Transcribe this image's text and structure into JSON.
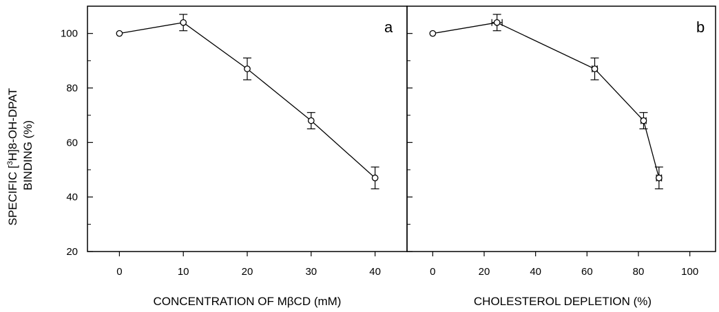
{
  "chart_data": [
    {
      "type": "line",
      "panel_label": "a",
      "xlabel": "CONCENTRATION OF MβCD (mM)",
      "ylabel_line1": "SPECIFIC [3H]8-OH-DPAT",
      "ylabel_line2": "BINDING (%)",
      "xlim": [
        -5,
        45
      ],
      "ylim": [
        20,
        110
      ],
      "x_ticks": [
        0,
        10,
        20,
        30,
        40
      ],
      "y_ticks": [
        20,
        40,
        60,
        80,
        100
      ],
      "x": [
        0,
        10,
        20,
        30,
        40
      ],
      "y": [
        100,
        104,
        87,
        68,
        47
      ],
      "y_err": [
        0,
        3,
        4,
        3,
        4
      ],
      "x_err": [
        0,
        0,
        0,
        0,
        0
      ],
      "marker": "open-circle",
      "grid": false
    },
    {
      "type": "line",
      "panel_label": "b",
      "xlabel": "CHOLESTEROL DEPLETION (%)",
      "xlim": [
        -10,
        110
      ],
      "ylim": [
        20,
        110
      ],
      "x_ticks": [
        0,
        20,
        40,
        60,
        80,
        100
      ],
      "y_ticks": [
        20,
        40,
        60,
        80,
        100
      ],
      "x": [
        0,
        25,
        63,
        82,
        88
      ],
      "y": [
        100,
        104,
        87,
        68,
        47
      ],
      "y_err": [
        0,
        3,
        4,
        3,
        4
      ],
      "x_err": [
        0,
        2,
        1,
        1,
        1
      ],
      "marker": "open-circle",
      "grid": false
    }
  ]
}
